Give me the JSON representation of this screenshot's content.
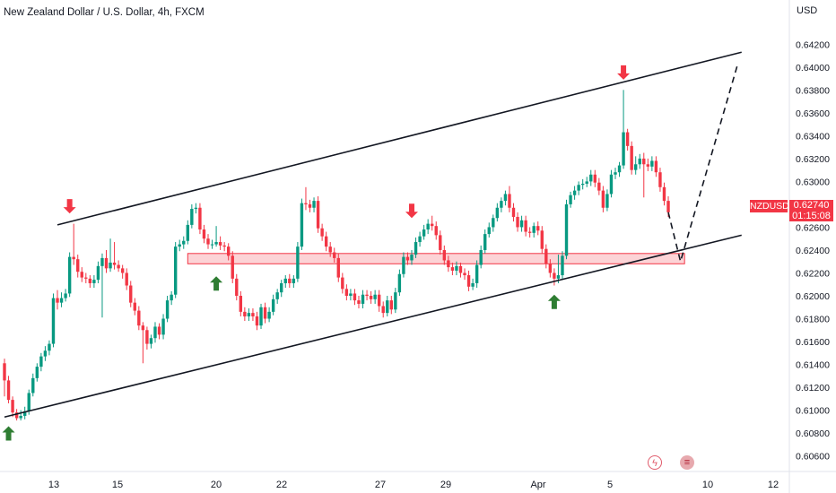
{
  "header": {
    "title": "New Zealand Dollar / U.S. Dollar, 4h, FXCM",
    "currency": "USD"
  },
  "badges": {
    "ticker": "NZDUSD",
    "last_price": "0.62740",
    "countdown": "01:15:08",
    "color": "#f23645"
  },
  "icons": {
    "event_flash": "flash-icon",
    "country_flag": "us-flag-icon"
  },
  "colors": {
    "up": "#089981",
    "down": "#f23645",
    "arrow_up": "#2e7d32",
    "arrow_down": "#f23645",
    "zone": "#f23645"
  },
  "chart_data": {
    "type": "candlestick",
    "symbol": "NZDUSD",
    "timeframe": "4h",
    "x_tick_labels": [
      "13",
      "15",
      "20",
      "22",
      "27",
      "29",
      "Apr",
      "5",
      "10",
      "12"
    ],
    "y_tick_labels": [
      "0.64200",
      "0.64000",
      "0.63800",
      "0.63600",
      "0.63400",
      "0.63200",
      "0.63000",
      "0.62800",
      "0.62600",
      "0.62400",
      "0.62200",
      "0.62000",
      "0.61800",
      "0.61600",
      "0.61400",
      "0.61200",
      "0.61000",
      "0.60800",
      "0.60600"
    ],
    "ylim": [
      0.6055,
      0.6432
    ],
    "bar_count": 181,
    "candles": [
      [
        0,
        0.6141,
        0.6126,
        0.6112,
        0.6145
      ],
      [
        1,
        0.6126,
        0.6109,
        0.6106,
        0.613
      ],
      [
        2,
        0.6109,
        0.6098,
        0.6094,
        0.6112
      ],
      [
        3,
        0.6098,
        0.6093,
        0.6091,
        0.6101
      ],
      [
        4,
        0.6093,
        0.6095,
        0.6091,
        0.61
      ],
      [
        5,
        0.6095,
        0.6099,
        0.6092,
        0.6103
      ],
      [
        6,
        0.6099,
        0.6115,
        0.6096,
        0.6118
      ],
      [
        7,
        0.6115,
        0.6128,
        0.6112,
        0.6132
      ],
      [
        8,
        0.6128,
        0.6138,
        0.6125,
        0.6141
      ],
      [
        9,
        0.6138,
        0.6147,
        0.6134,
        0.615
      ],
      [
        10,
        0.6147,
        0.6152,
        0.6143,
        0.6156
      ],
      [
        11,
        0.6152,
        0.6158,
        0.6148,
        0.6161
      ],
      [
        12,
        0.6158,
        0.6198,
        0.6155,
        0.6202
      ],
      [
        13,
        0.6198,
        0.6194,
        0.6188,
        0.6205
      ],
      [
        14,
        0.6194,
        0.6198,
        0.619,
        0.6203
      ],
      [
        15,
        0.6198,
        0.6202,
        0.6195,
        0.6206
      ],
      [
        16,
        0.6202,
        0.6234,
        0.6199,
        0.6238
      ],
      [
        17,
        0.6234,
        0.6232,
        0.6227,
        0.6263
      ],
      [
        18,
        0.6232,
        0.6221,
        0.6216,
        0.6236
      ],
      [
        19,
        0.6221,
        0.6216,
        0.6212,
        0.6225
      ],
      [
        20,
        0.6216,
        0.6215,
        0.6211,
        0.622
      ],
      [
        21,
        0.6215,
        0.6211,
        0.6207,
        0.6218
      ],
      [
        22,
        0.6211,
        0.6214,
        0.6207,
        0.6218
      ],
      [
        23,
        0.6214,
        0.6226,
        0.6211,
        0.623
      ],
      [
        24,
        0.6226,
        0.6233,
        0.6181,
        0.6237
      ],
      [
        25,
        0.6233,
        0.6224,
        0.622,
        0.624
      ],
      [
        26,
        0.6224,
        0.6229,
        0.6221,
        0.625
      ],
      [
        27,
        0.6229,
        0.6227,
        0.6223,
        0.6247
      ],
      [
        28,
        0.6227,
        0.6224,
        0.6221,
        0.6231
      ],
      [
        29,
        0.6224,
        0.622,
        0.6215,
        0.6227
      ],
      [
        30,
        0.622,
        0.6209,
        0.6205,
        0.6224
      ],
      [
        31,
        0.6209,
        0.6194,
        0.619,
        0.6213
      ],
      [
        32,
        0.6194,
        0.6187,
        0.6183,
        0.6198
      ],
      [
        33,
        0.6187,
        0.6174,
        0.617,
        0.6191
      ],
      [
        34,
        0.6174,
        0.617,
        0.6141,
        0.6177
      ],
      [
        35,
        0.617,
        0.6158,
        0.6153,
        0.6173
      ],
      [
        36,
        0.6158,
        0.6163,
        0.6154,
        0.6166
      ],
      [
        37,
        0.6163,
        0.6173,
        0.6159,
        0.6177
      ],
      [
        38,
        0.6173,
        0.6166,
        0.6162,
        0.6176
      ],
      [
        39,
        0.6166,
        0.618,
        0.6162,
        0.6184
      ],
      [
        40,
        0.618,
        0.6196,
        0.6177,
        0.62
      ],
      [
        41,
        0.6196,
        0.6201,
        0.6192,
        0.6204
      ],
      [
        42,
        0.6201,
        0.6243,
        0.6198,
        0.6247
      ],
      [
        43,
        0.6243,
        0.6245,
        0.6239,
        0.6249
      ],
      [
        44,
        0.6245,
        0.6248,
        0.6241,
        0.6252
      ],
      [
        45,
        0.6248,
        0.6262,
        0.6245,
        0.6266
      ],
      [
        46,
        0.6262,
        0.6276,
        0.6259,
        0.628
      ],
      [
        47,
        0.6276,
        0.6277,
        0.6272,
        0.6281
      ],
      [
        48,
        0.6277,
        0.6258,
        0.6254,
        0.6281
      ],
      [
        49,
        0.6258,
        0.625,
        0.6246,
        0.6262
      ],
      [
        50,
        0.625,
        0.6245,
        0.6241,
        0.6254
      ],
      [
        51,
        0.6245,
        0.6245,
        0.6241,
        0.6249
      ],
      [
        52,
        0.6245,
        0.6247,
        0.6243,
        0.6261
      ],
      [
        53,
        0.6247,
        0.6244,
        0.624,
        0.6252
      ],
      [
        54,
        0.6244,
        0.6243,
        0.6239,
        0.6247
      ],
      [
        55,
        0.6243,
        0.6235,
        0.6231,
        0.6246
      ],
      [
        56,
        0.6235,
        0.6215,
        0.6211,
        0.6239
      ],
      [
        57,
        0.6215,
        0.62,
        0.6196,
        0.6219
      ],
      [
        58,
        0.62,
        0.6186,
        0.6182,
        0.6204
      ],
      [
        59,
        0.6186,
        0.6182,
        0.6178,
        0.619
      ],
      [
        60,
        0.6182,
        0.6185,
        0.6178,
        0.6189
      ],
      [
        61,
        0.6185,
        0.6182,
        0.6178,
        0.6189
      ],
      [
        62,
        0.6182,
        0.6174,
        0.617,
        0.6186
      ],
      [
        63,
        0.6174,
        0.619,
        0.6171,
        0.6193
      ],
      [
        64,
        0.619,
        0.618,
        0.6176,
        0.6194
      ],
      [
        65,
        0.618,
        0.6186,
        0.6177,
        0.619
      ],
      [
        66,
        0.6186,
        0.6197,
        0.6183,
        0.6201
      ],
      [
        67,
        0.6197,
        0.6203,
        0.6193,
        0.6206
      ],
      [
        68,
        0.6203,
        0.6211,
        0.6199,
        0.6214
      ],
      [
        69,
        0.6211,
        0.6215,
        0.6207,
        0.6218
      ],
      [
        70,
        0.6215,
        0.6211,
        0.6207,
        0.6219
      ],
      [
        71,
        0.6211,
        0.6215,
        0.6207,
        0.6218
      ],
      [
        72,
        0.6215,
        0.6243,
        0.6212,
        0.6247
      ],
      [
        73,
        0.6243,
        0.6281,
        0.624,
        0.6285
      ],
      [
        74,
        0.6281,
        0.628,
        0.6275,
        0.6295
      ],
      [
        75,
        0.628,
        0.6277,
        0.6273,
        0.6284
      ],
      [
        76,
        0.6277,
        0.6283,
        0.6273,
        0.6286
      ],
      [
        77,
        0.6283,
        0.6259,
        0.6255,
        0.6287
      ],
      [
        78,
        0.6259,
        0.6252,
        0.6248,
        0.6263
      ],
      [
        79,
        0.6252,
        0.6243,
        0.6239,
        0.6256
      ],
      [
        80,
        0.6243,
        0.6238,
        0.6234,
        0.6247
      ],
      [
        81,
        0.6238,
        0.6233,
        0.6229,
        0.6242
      ],
      [
        82,
        0.6233,
        0.6216,
        0.6212,
        0.6237
      ],
      [
        83,
        0.6216,
        0.6206,
        0.6202,
        0.622
      ],
      [
        84,
        0.6206,
        0.62,
        0.6196,
        0.621
      ],
      [
        85,
        0.62,
        0.6202,
        0.6196,
        0.6206
      ],
      [
        86,
        0.6202,
        0.6196,
        0.6192,
        0.6206
      ],
      [
        87,
        0.6196,
        0.6193,
        0.6189,
        0.62
      ],
      [
        88,
        0.6193,
        0.6201,
        0.6189,
        0.6205
      ],
      [
        89,
        0.6201,
        0.62,
        0.6196,
        0.6205
      ],
      [
        90,
        0.62,
        0.6197,
        0.6193,
        0.6204
      ],
      [
        91,
        0.6197,
        0.6201,
        0.6193,
        0.6205
      ],
      [
        92,
        0.6201,
        0.6191,
        0.6186,
        0.6205
      ],
      [
        93,
        0.6191,
        0.6185,
        0.6181,
        0.6195
      ],
      [
        94,
        0.6185,
        0.6196,
        0.6182,
        0.62
      ],
      [
        95,
        0.6196,
        0.6188,
        0.6184,
        0.62
      ],
      [
        96,
        0.6188,
        0.6203,
        0.6185,
        0.6207
      ],
      [
        97,
        0.6203,
        0.6219,
        0.62,
        0.6223
      ],
      [
        98,
        0.6219,
        0.6234,
        0.6216,
        0.6238
      ],
      [
        99,
        0.6234,
        0.6231,
        0.6227,
        0.6238
      ],
      [
        100,
        0.6231,
        0.6236,
        0.6227,
        0.624
      ],
      [
        101,
        0.6236,
        0.6247,
        0.6233,
        0.6251
      ],
      [
        102,
        0.6247,
        0.6252,
        0.6243,
        0.6256
      ],
      [
        103,
        0.6252,
        0.6258,
        0.6249,
        0.6262
      ],
      [
        104,
        0.6258,
        0.6263,
        0.6254,
        0.6267
      ],
      [
        105,
        0.6263,
        0.6261,
        0.6257,
        0.627
      ],
      [
        106,
        0.6261,
        0.6253,
        0.6249,
        0.6265
      ],
      [
        107,
        0.6253,
        0.624,
        0.6236,
        0.6257
      ],
      [
        108,
        0.624,
        0.6231,
        0.6227,
        0.6244
      ],
      [
        109,
        0.6231,
        0.6225,
        0.6221,
        0.6235
      ],
      [
        110,
        0.6225,
        0.6222,
        0.6218,
        0.6229
      ],
      [
        111,
        0.6222,
        0.6226,
        0.6218,
        0.623
      ],
      [
        112,
        0.6226,
        0.622,
        0.6216,
        0.6229
      ],
      [
        113,
        0.622,
        0.6218,
        0.6214,
        0.6224
      ],
      [
        114,
        0.6218,
        0.6208,
        0.6204,
        0.6222
      ],
      [
        115,
        0.6208,
        0.6211,
        0.6205,
        0.6215
      ],
      [
        116,
        0.6211,
        0.6227,
        0.6207,
        0.6231
      ],
      [
        117,
        0.6227,
        0.624,
        0.6224,
        0.6244
      ],
      [
        118,
        0.624,
        0.6254,
        0.6237,
        0.6258
      ],
      [
        119,
        0.6254,
        0.626,
        0.6251,
        0.6264
      ],
      [
        120,
        0.626,
        0.6268,
        0.6256,
        0.6271
      ],
      [
        121,
        0.6268,
        0.6277,
        0.6265,
        0.6281
      ],
      [
        122,
        0.6277,
        0.6283,
        0.6273,
        0.6286
      ],
      [
        123,
        0.6283,
        0.6289,
        0.6279,
        0.6292
      ],
      [
        124,
        0.6289,
        0.6277,
        0.6273,
        0.6296
      ],
      [
        125,
        0.6277,
        0.6269,
        0.6265,
        0.6281
      ],
      [
        126,
        0.6269,
        0.626,
        0.6256,
        0.6273
      ],
      [
        127,
        0.626,
        0.6266,
        0.6256,
        0.627
      ],
      [
        128,
        0.6266,
        0.6256,
        0.6252,
        0.627
      ],
      [
        129,
        0.6256,
        0.6255,
        0.6251,
        0.626
      ],
      [
        130,
        0.6255,
        0.6261,
        0.6251,
        0.6264
      ],
      [
        131,
        0.6261,
        0.6257,
        0.6253,
        0.6265
      ],
      [
        132,
        0.6257,
        0.6241,
        0.6237,
        0.6261
      ],
      [
        133,
        0.6241,
        0.6228,
        0.6224,
        0.6245
      ],
      [
        134,
        0.6228,
        0.622,
        0.6216,
        0.6232
      ],
      [
        135,
        0.622,
        0.6215,
        0.6209,
        0.6224
      ],
      [
        136,
        0.6215,
        0.6218,
        0.6211,
        0.6236
      ],
      [
        137,
        0.6218,
        0.6235,
        0.6214,
        0.6239
      ],
      [
        138,
        0.6235,
        0.628,
        0.6232,
        0.6284
      ],
      [
        139,
        0.628,
        0.6288,
        0.6277,
        0.6291
      ],
      [
        140,
        0.6288,
        0.6292,
        0.6284,
        0.6296
      ],
      [
        141,
        0.6292,
        0.6297,
        0.6288,
        0.63
      ],
      [
        142,
        0.6297,
        0.6298,
        0.6293,
        0.6302
      ],
      [
        143,
        0.6298,
        0.63,
        0.6295,
        0.6304
      ],
      [
        144,
        0.63,
        0.6306,
        0.6296,
        0.631
      ],
      [
        145,
        0.6306,
        0.6299,
        0.6295,
        0.631
      ],
      [
        146,
        0.6299,
        0.6292,
        0.6288,
        0.6303
      ],
      [
        147,
        0.6292,
        0.6277,
        0.6273,
        0.6296
      ],
      [
        148,
        0.6277,
        0.6289,
        0.6274,
        0.6293
      ],
      [
        149,
        0.6289,
        0.6306,
        0.6286,
        0.631
      ],
      [
        150,
        0.6306,
        0.6308,
        0.6302,
        0.6312
      ],
      [
        151,
        0.6308,
        0.6314,
        0.6304,
        0.6317
      ],
      [
        152,
        0.6314,
        0.6343,
        0.6311,
        0.638
      ],
      [
        153,
        0.6343,
        0.6331,
        0.6327,
        0.6346
      ],
      [
        154,
        0.6331,
        0.631,
        0.6306,
        0.6335
      ],
      [
        155,
        0.631,
        0.6315,
        0.6306,
        0.6322
      ],
      [
        156,
        0.6315,
        0.632,
        0.6311,
        0.6324
      ],
      [
        157,
        0.632,
        0.6315,
        0.6286,
        0.6325
      ],
      [
        158,
        0.6315,
        0.6313,
        0.6309,
        0.632
      ],
      [
        159,
        0.6313,
        0.6318,
        0.6309,
        0.6322
      ],
      [
        160,
        0.6318,
        0.6308,
        0.6304,
        0.6322
      ],
      [
        161,
        0.6308,
        0.6295,
        0.6291,
        0.6312
      ],
      [
        162,
        0.6295,
        0.6283,
        0.6279,
        0.6299
      ],
      [
        163,
        0.6283,
        0.6273,
        0.6269,
        0.6287
      ]
    ],
    "annotations": {
      "channel_upper": [
        [
          13,
          0.6262
        ],
        [
          181,
          0.6413
        ]
      ],
      "channel_lower": [
        [
          0,
          0.6094
        ],
        [
          181,
          0.6253
        ]
      ],
      "support_zone": {
        "low": 0.6228,
        "high": 0.6237,
        "from_bar": 45,
        "to_bar": 167
      },
      "projection": [
        [
          163,
          0.6273
        ],
        [
          166,
          0.623
        ],
        [
          180,
          0.6402
        ]
      ],
      "down_arrows": [
        [
          16,
          0.6272
        ],
        [
          100,
          0.6268
        ],
        [
          152,
          0.6389
        ]
      ],
      "up_arrows": [
        [
          1,
          0.6086
        ],
        [
          52,
          0.6217
        ],
        [
          135,
          0.6201
        ]
      ]
    }
  }
}
